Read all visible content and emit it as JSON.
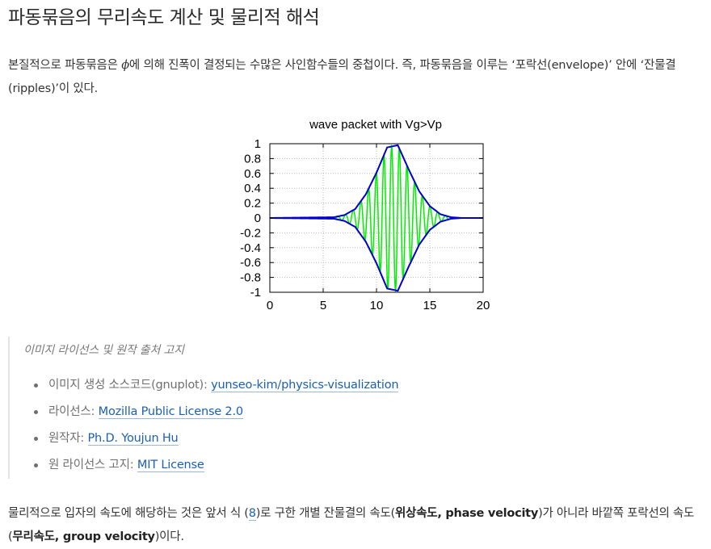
{
  "heading": "파동묶음의 무리속도 계산 및 물리적 해석",
  "intro": {
    "before_symbol": "본질적으로 파동묶음은 ",
    "symbol": "ϕ",
    "after_symbol": "에 의해 진폭이 결정되는 수많은 사인함수들의 중첩이다. 즉, 파동묶음을 이루는 ‘포락선(envelope)’ 안에 ‘잔물결(ripples)’이 있다."
  },
  "chart_data": {
    "type": "line",
    "title": "wave packet with Vg>Vp",
    "xlabel": "",
    "ylabel": "",
    "xlim": [
      0,
      20
    ],
    "ylim": [
      -1,
      1
    ],
    "x_ticks": [
      "0",
      "5",
      "10",
      "15",
      "20"
    ],
    "y_ticks": [
      "1",
      "0.8",
      "0.6",
      "0.4",
      "0.2",
      "0",
      "-0.2",
      "-0.4",
      "-0.6",
      "-0.8",
      "-1"
    ],
    "grid": true,
    "legend": "none",
    "series": [
      {
        "role": "envelope_upper",
        "color": "#0000cc",
        "x": [
          0,
          6,
          7,
          8,
          9,
          10,
          11,
          12,
          13,
          14,
          15,
          16,
          17,
          18,
          20
        ],
        "y": [
          0,
          0.01,
          0.04,
          0.12,
          0.32,
          0.61,
          0.95,
          0.98,
          0.66,
          0.36,
          0.16,
          0.05,
          0.01,
          0,
          0
        ]
      },
      {
        "role": "envelope_lower",
        "color": "#0000cc",
        "x": [
          0,
          6,
          7,
          8,
          9,
          10,
          11,
          12,
          13,
          14,
          15,
          16,
          17,
          18,
          20
        ],
        "y": [
          0,
          -0.01,
          -0.04,
          -0.12,
          -0.32,
          -0.61,
          -0.95,
          -0.98,
          -0.66,
          -0.36,
          -0.16,
          -0.05,
          -0.01,
          0,
          0
        ]
      },
      {
        "role": "ripples",
        "color": "#00ee00",
        "x": [
          0,
          6,
          7,
          8,
          9,
          10,
          11,
          12,
          13,
          14,
          15,
          16,
          17,
          18,
          20
        ],
        "y": [
          0,
          0.01,
          0.04,
          0.12,
          0.32,
          0.61,
          0.95,
          0.98,
          0.66,
          0.36,
          0.16,
          0.05,
          0.01,
          0,
          0
        ]
      }
    ]
  },
  "license": {
    "title": "이미지 라이선스 및 원작 출처 고지",
    "items": [
      {
        "label": "이미지 생성 소스코드(gnuplot): ",
        "link": "yunseo-kim/physics-visualization"
      },
      {
        "label": "라이선스: ",
        "link": "Mozilla Public License 2.0"
      },
      {
        "label": "원작자: ",
        "link": "Ph.D. Youjun Hu"
      },
      {
        "label": "원 라이선스 고지: ",
        "link": "MIT License"
      }
    ]
  },
  "para2": {
    "t1": "물리적으로 입자의 속도에 해당하는 것은 앞서 식 (",
    "eq_ref": "8",
    "t2": ")로 구한 개별 잔물결의 속도(",
    "b1": "위상속도, phase velocity",
    "t3": ")가 아니라 바깥쪽 포락선의 속도(",
    "b2": "무리속도, group velocity",
    "t4": ")이다."
  },
  "colors": {
    "link": "#1a5fb4",
    "envelope": "#0000cc",
    "ripples": "#00ee00"
  }
}
